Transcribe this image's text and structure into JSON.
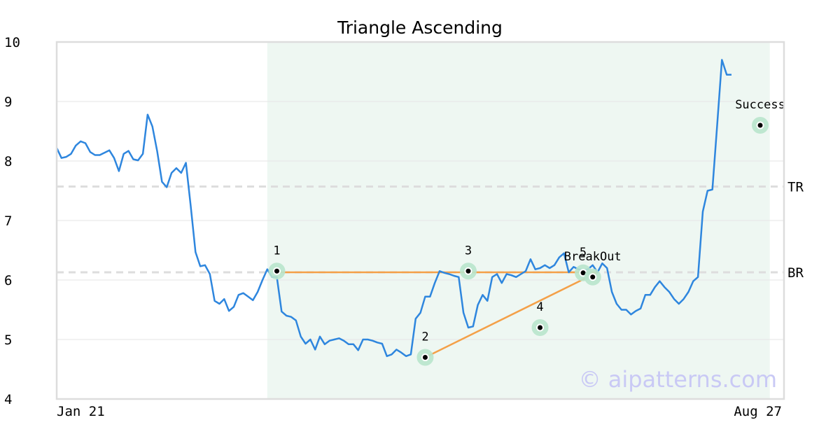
{
  "chart_data": {
    "type": "line",
    "title": "Triangle Ascending",
    "ylim": [
      4,
      10
    ],
    "yticks": [
      "4",
      "5",
      "6",
      "7",
      "8",
      "9",
      "10"
    ],
    "x_start_label": "Jan 21",
    "x_end_label": "Aug 27",
    "series": [
      {
        "color": "#2e86de",
        "values": [
          8.22,
          8.05,
          8.07,
          8.12,
          8.26,
          8.33,
          8.3,
          8.15,
          8.1,
          8.1,
          8.14,
          8.18,
          8.05,
          7.83,
          8.12,
          8.17,
          8.03,
          8.01,
          8.12,
          8.78,
          8.58,
          8.16,
          7.65,
          7.56,
          7.8,
          7.88,
          7.8,
          7.97,
          7.25,
          6.47,
          6.23,
          6.25,
          6.1,
          5.65,
          5.6,
          5.68,
          5.48,
          5.55,
          5.75,
          5.78,
          5.72,
          5.66,
          5.8,
          6.0,
          6.18,
          6.05,
          6.05,
          5.47,
          5.4,
          5.38,
          5.32,
          5.05,
          4.93,
          5.0,
          4.83,
          5.05,
          4.92,
          4.98,
          5.0,
          5.02,
          4.98,
          4.92,
          4.92,
          4.82,
          5.0,
          5.0,
          4.98,
          4.95,
          4.93,
          4.72,
          4.75,
          4.83,
          4.78,
          4.72,
          4.75,
          5.35,
          5.45,
          5.72,
          5.72,
          5.95,
          6.15,
          6.12,
          6.1,
          6.07,
          6.05,
          5.45,
          5.2,
          5.22,
          5.58,
          5.75,
          5.65,
          6.05,
          6.1,
          5.95,
          6.1,
          6.08,
          6.05,
          6.1,
          6.15,
          6.35,
          6.18,
          6.2,
          6.25,
          6.2,
          6.25,
          6.38,
          6.45,
          6.13,
          6.22,
          6.18,
          6.17,
          6.18,
          6.25,
          6.13,
          6.28,
          6.2,
          5.8,
          5.6,
          5.5,
          5.5,
          5.42,
          5.48,
          5.52,
          5.75,
          5.75,
          5.88,
          5.98,
          5.88,
          5.8,
          5.68,
          5.6,
          5.68,
          5.8,
          5.98,
          6.05,
          7.15,
          7.5,
          7.52,
          8.6,
          9.7,
          9.45,
          9.45
        ]
      }
    ],
    "shaded_region": {
      "from_index": 44,
      "to_index": 149,
      "color": "#eef7f2"
    },
    "resistance_level": {
      "label": "TR",
      "value": 7.57
    },
    "breakout_level": {
      "label": "BR",
      "value": 6.13
    },
    "points": [
      {
        "label": "1",
        "index": 46,
        "value": 6.15
      },
      {
        "label": "2",
        "index": 77,
        "value": 4.7
      },
      {
        "label": "3",
        "index": 86,
        "value": 6.15
      },
      {
        "label": "4",
        "index": 101,
        "value": 5.2
      },
      {
        "label": "5",
        "index": 110,
        "value": 6.12
      },
      {
        "label": "BreakOut",
        "index": 112,
        "value": 6.05
      },
      {
        "label": "Success",
        "index": 147,
        "value": 8.6
      }
    ],
    "pattern_lines": [
      {
        "from_index": 46,
        "from_value": 6.13,
        "to_index": 113,
        "to_value": 6.13
      },
      {
        "from_index": 77,
        "from_value": 4.7,
        "to_index": 113,
        "to_value": 6.13
      }
    ],
    "line_color": "#2e86de",
    "pattern_color": "#f4a048",
    "marker_color": "#b8e4cc",
    "level_color": "#dddddd"
  },
  "watermark": "© aipatterns.com"
}
